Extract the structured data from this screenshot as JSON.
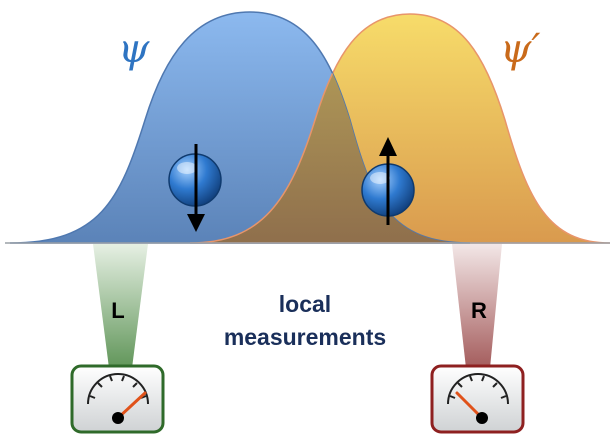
{
  "labels": {
    "psi": "ψ",
    "psi_prime": "ψ′",
    "left_detector": "L",
    "right_detector": "R",
    "center_line1": "local",
    "center_line2": "measurements"
  },
  "colors": {
    "psi": "#2e74c2",
    "psi_prime": "#c96a1a",
    "left_wave": "#6f9fd8",
    "right_wave": "#e4c35a",
    "overlap": "#8a7a55",
    "detector_left_border": "#2f6a2a",
    "detector_right_border": "#8e2020",
    "center_text": "#1a2f5a",
    "spin": "#1e62b0"
  },
  "spins": [
    {
      "name": "left-spin",
      "direction": "down"
    },
    {
      "name": "right-spin",
      "direction": "up"
    }
  ],
  "gauges": [
    {
      "name": "left-gauge",
      "needle": "up-right"
    },
    {
      "name": "right-gauge",
      "needle": "up-left"
    }
  ],
  "icons": [
    "spin-down-icon",
    "spin-up-icon",
    "gauge-icon"
  ]
}
